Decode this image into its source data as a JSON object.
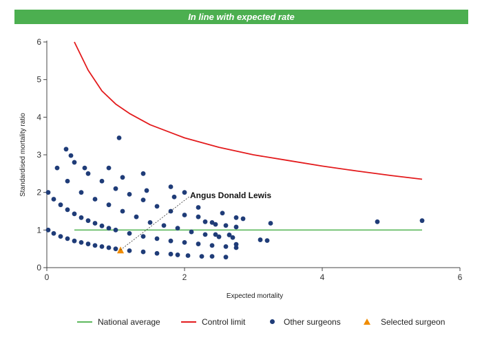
{
  "banner": {
    "text": "In line with expected rate",
    "color": "#4caf50"
  },
  "colors": {
    "national": "#5cb85c",
    "control": "#e31a1c",
    "others": "#1f3c78",
    "selected": "#f08c00"
  },
  "chart_data": {
    "type": "scatter",
    "title": "",
    "xlabel": "Expected mortality",
    "ylabel": "Standardised mortality ratio",
    "xlim": [
      0,
      6
    ],
    "ylim": [
      0,
      6
    ],
    "xticks": [
      0,
      2,
      4,
      6
    ],
    "yticks": [
      0,
      1,
      2,
      3,
      4,
      5,
      6
    ],
    "grid": false,
    "legend_position": "bottom",
    "series": [
      {
        "name": "National average",
        "kind": "line",
        "points": [
          [
            0.4,
            1.0
          ],
          [
            5.45,
            1.0
          ]
        ]
      },
      {
        "name": "Control limit",
        "kind": "line",
        "points": [
          [
            0.4,
            6.0
          ],
          [
            0.6,
            5.25
          ],
          [
            0.8,
            4.7
          ],
          [
            1.0,
            4.35
          ],
          [
            1.2,
            4.1
          ],
          [
            1.5,
            3.8
          ],
          [
            2.0,
            3.45
          ],
          [
            2.5,
            3.2
          ],
          [
            3.0,
            3.0
          ],
          [
            3.5,
            2.85
          ],
          [
            4.0,
            2.7
          ],
          [
            4.5,
            2.57
          ],
          [
            5.0,
            2.45
          ],
          [
            5.45,
            2.35
          ]
        ]
      },
      {
        "name": "Other surgeons",
        "kind": "scatter",
        "points": [
          [
            0.02,
            1.0
          ],
          [
            0.1,
            0.91
          ],
          [
            0.2,
            0.83
          ],
          [
            0.3,
            0.77
          ],
          [
            0.4,
            0.71
          ],
          [
            0.5,
            0.67
          ],
          [
            0.6,
            0.63
          ],
          [
            0.7,
            0.59
          ],
          [
            0.8,
            0.56
          ],
          [
            0.9,
            0.53
          ],
          [
            1.0,
            0.5
          ],
          [
            1.2,
            0.45
          ],
          [
            1.4,
            0.42
          ],
          [
            1.6,
            0.38
          ],
          [
            1.8,
            0.36
          ],
          [
            1.9,
            0.34
          ],
          [
            0.02,
            2.0
          ],
          [
            0.1,
            1.82
          ],
          [
            0.2,
            1.67
          ],
          [
            0.3,
            1.54
          ],
          [
            0.4,
            1.43
          ],
          [
            0.5,
            1.33
          ],
          [
            0.6,
            1.25
          ],
          [
            0.7,
            1.18
          ],
          [
            0.8,
            1.11
          ],
          [
            0.9,
            1.05
          ],
          [
            1.0,
            1.0
          ],
          [
            1.2,
            0.91
          ],
          [
            1.4,
            0.83
          ],
          [
            1.6,
            0.77
          ],
          [
            1.8,
            0.71
          ],
          [
            2.0,
            0.67
          ],
          [
            2.2,
            0.63
          ],
          [
            2.4,
            0.59
          ],
          [
            2.6,
            0.56
          ],
          [
            2.75,
            0.53
          ],
          [
            0.15,
            2.65
          ],
          [
            0.3,
            2.3
          ],
          [
            0.5,
            2.0
          ],
          [
            0.7,
            1.82
          ],
          [
            0.9,
            1.67
          ],
          [
            1.1,
            1.5
          ],
          [
            1.3,
            1.35
          ],
          [
            1.5,
            1.2
          ],
          [
            1.7,
            1.12
          ],
          [
            1.9,
            1.05
          ],
          [
            2.1,
            0.95
          ],
          [
            2.3,
            0.88
          ],
          [
            2.5,
            0.82
          ],
          [
            2.7,
            0.8
          ],
          [
            0.28,
            3.15
          ],
          [
            0.4,
            2.8
          ],
          [
            0.6,
            2.5
          ],
          [
            0.8,
            2.3
          ],
          [
            1.0,
            2.1
          ],
          [
            1.2,
            1.95
          ],
          [
            1.4,
            1.8
          ],
          [
            1.6,
            1.63
          ],
          [
            1.8,
            1.5
          ],
          [
            2.0,
            1.4
          ],
          [
            2.2,
            1.35
          ],
          [
            2.4,
            1.2
          ],
          [
            2.6,
            1.12
          ],
          [
            2.75,
            1.08
          ],
          [
            0.35,
            2.98
          ],
          [
            0.55,
            2.65
          ],
          [
            0.9,
            2.65
          ],
          [
            1.05,
            3.45
          ],
          [
            1.1,
            2.4
          ],
          [
            1.4,
            2.5
          ],
          [
            1.45,
            2.05
          ],
          [
            1.8,
            2.15
          ],
          [
            2.0,
            2.0
          ],
          [
            1.85,
            1.88
          ],
          [
            2.2,
            1.6
          ],
          [
            2.55,
            1.45
          ],
          [
            2.75,
            1.33
          ],
          [
            2.85,
            1.3
          ],
          [
            3.25,
            1.18
          ],
          [
            2.3,
            1.22
          ],
          [
            2.45,
            1.15
          ],
          [
            2.45,
            0.88
          ],
          [
            2.65,
            0.87
          ],
          [
            3.1,
            0.74
          ],
          [
            3.2,
            0.72
          ],
          [
            2.75,
            0.62
          ],
          [
            2.4,
            0.3
          ],
          [
            2.6,
            0.28
          ],
          [
            2.25,
            0.3
          ],
          [
            2.05,
            0.32
          ],
          [
            4.8,
            1.22
          ],
          [
            5.45,
            1.25
          ]
        ]
      },
      {
        "name": "Selected surgeon",
        "kind": "scatter",
        "points": [
          [
            1.07,
            0.47
          ]
        ]
      }
    ],
    "annotations": [
      {
        "text": "Angus Donald Lewis",
        "points_to": [
          1.07,
          0.47
        ]
      }
    ]
  }
}
